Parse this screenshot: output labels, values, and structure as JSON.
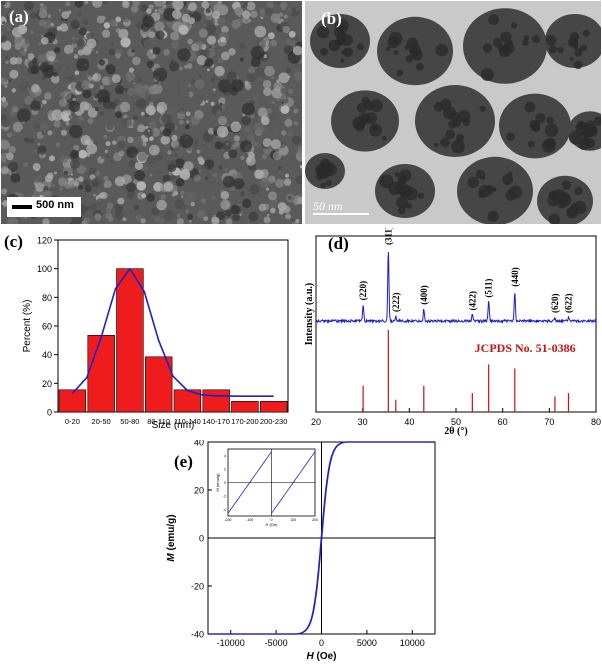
{
  "panels": {
    "a": {
      "label": "(a)",
      "scalebar": "500 nm",
      "colors": {
        "bg": "#5a5a5a",
        "grain_light": "#a9a9a9",
        "grain_dark": "#2e2e2e"
      }
    },
    "b": {
      "label": "(b)",
      "scalebar": "50 nm",
      "colors": {
        "bg": "#c9c9c9",
        "particle": "#464646",
        "particle_dark": "#2b2b2b"
      }
    },
    "c": {
      "label": "(c)"
    },
    "d": {
      "label": "(d)",
      "reference": "JCPDS  No. 51-0386"
    },
    "e": {
      "label": "(e)"
    }
  },
  "chart_data": [
    {
      "panel": "c",
      "type": "bar",
      "categories": [
        "0-20",
        "20-50",
        "50-80",
        "80-110",
        "110-140",
        "140-170",
        "170-200",
        "200-230"
      ],
      "values": [
        15.5,
        53.5,
        100,
        38.5,
        15.5,
        15.5,
        7.5,
        7.5
      ],
      "xlabel": "Size (nm)",
      "ylabel": "Percent (%)",
      "ylim": [
        0,
        120
      ],
      "yticks": [
        0,
        20,
        40,
        60,
        80,
        100,
        120
      ],
      "bar_color": "#ee1c1c",
      "fit": {
        "type": "line",
        "color": "#2020c8",
        "x": [
          0,
          0.5,
          1,
          1.5,
          2,
          2.5,
          3,
          3.5,
          4,
          4.5,
          5,
          5.5,
          6,
          6.5,
          7
        ],
        "y": [
          13,
          24,
          52,
          86,
          100,
          84,
          50,
          25,
          15,
          12,
          11.3,
          11.1,
          11,
          11,
          11
        ]
      }
    },
    {
      "panel": "d",
      "type": "line",
      "xlabel": "2θ (°)",
      "ylabel": "Intensity (a.u.)",
      "xlim": [
        20,
        80
      ],
      "xticks": [
        20,
        30,
        40,
        50,
        60,
        70,
        80
      ],
      "line_color": "#1c1ccc",
      "ref_color": "#cc1010",
      "baseline": 0.27,
      "peaks": [
        {
          "label": "(220)",
          "x": 30.1,
          "intensity": 0.23
        },
        {
          "label": "(311)",
          "x": 35.5,
          "intensity": 1.0
        },
        {
          "label": "(222)",
          "x": 37.1,
          "intensity": 0.07
        },
        {
          "label": "(400)",
          "x": 43.1,
          "intensity": 0.17
        },
        {
          "label": "(422)",
          "x": 53.5,
          "intensity": 0.09
        },
        {
          "label": "(511)",
          "x": 57.0,
          "intensity": 0.27
        },
        {
          "label": "(440)",
          "x": 62.6,
          "intensity": 0.42
        },
        {
          "label": "(620)",
          "x": 71.2,
          "intensity": 0.04
        },
        {
          "label": "(622)",
          "x": 74.1,
          "intensity": 0.05
        }
      ],
      "reference_lines": [
        {
          "x": 30.1,
          "intensity": 0.32
        },
        {
          "x": 35.5,
          "intensity": 1.0
        },
        {
          "x": 37.1,
          "intensity": 0.15
        },
        {
          "x": 43.1,
          "intensity": 0.32
        },
        {
          "x": 53.5,
          "intensity": 0.23
        },
        {
          "x": 57.0,
          "intensity": 0.58
        },
        {
          "x": 62.6,
          "intensity": 0.53
        },
        {
          "x": 71.2,
          "intensity": 0.19
        },
        {
          "x": 74.1,
          "intensity": 0.23
        }
      ]
    },
    {
      "panel": "e",
      "type": "line",
      "xlabel_italic": "H",
      "xlabel_unit": " (Oe)",
      "ylabel_italic": "M",
      "ylabel_unit": " (emu/g)",
      "xlim": [
        -12500,
        12500
      ],
      "ylim": [
        -40,
        40
      ],
      "xticks": [
        -10000,
        -5000,
        0,
        5000,
        10000
      ],
      "yticks": [
        -40,
        -20,
        0,
        20,
        40
      ],
      "line_color": "#2020c8",
      "Ms": 41.5,
      "H0": 900,
      "coercivity": 25,
      "inset": {
        "xlim": [
          -200,
          200
        ],
        "ylim": [
          -5,
          5
        ],
        "xticks": [
          -200,
          -100,
          0,
          100,
          200
        ],
        "yticks": [
          -4,
          -2,
          0,
          2,
          4
        ],
        "xlabel": "H (Oe)",
        "ylabel": "M (emu/g)",
        "slope": 0.046
      }
    }
  ]
}
